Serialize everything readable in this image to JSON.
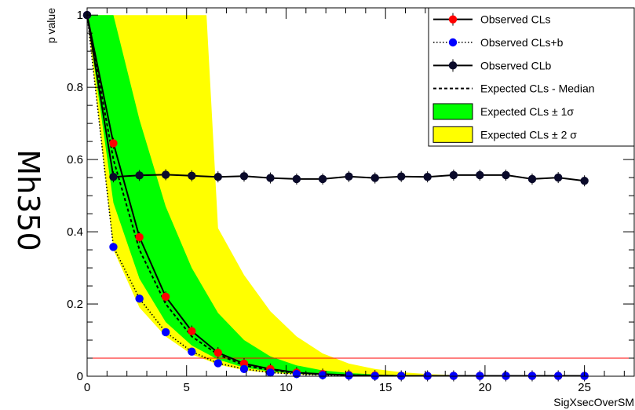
{
  "side_label": "Mh350",
  "chart_data": {
    "type": "line",
    "xlabel": "SigXsecOverSM",
    "ylabel": "p value",
    "xlim": [
      0,
      27.5
    ],
    "ylim": [
      0,
      1.02
    ],
    "x_ticks": [
      0,
      5,
      10,
      15,
      20,
      25
    ],
    "y_ticks": [
      0,
      0.2,
      0.4,
      0.6,
      0.8,
      1
    ],
    "threshold_line": {
      "y": 0.05,
      "color": "#ff0000"
    },
    "legend_position": "top-right",
    "series": [
      {
        "name": "Observed CLs",
        "style": "line-markers",
        "color": "#000000",
        "marker_color": "#ff0000",
        "x": [
          0,
          1.32,
          2.63,
          3.95,
          5.26,
          6.58,
          7.89,
          9.21,
          10.53,
          11.84,
          13.16,
          14.47,
          15.79,
          17.11,
          18.42,
          19.74,
          21.05,
          22.37,
          23.68,
          25.0
        ],
        "y": [
          1.0,
          0.645,
          0.385,
          0.22,
          0.125,
          0.065,
          0.035,
          0.02,
          0.01,
          0.006,
          0.003,
          0.002,
          0.001,
          0.001,
          0.001,
          0.001,
          0.001,
          0.001,
          0.001,
          0.001
        ]
      },
      {
        "name": "Observed CLs+b",
        "style": "dotted-markers",
        "color": "#000000",
        "marker_color": "#0000ff",
        "x": [
          0,
          1.32,
          2.63,
          3.95,
          5.26,
          6.58,
          7.89,
          9.21,
          10.53,
          11.84,
          13.16,
          14.47,
          15.79,
          17.11,
          18.42,
          19.74,
          21.05,
          22.37,
          23.68,
          25.0
        ],
        "y": [
          1.0,
          0.358,
          0.215,
          0.122,
          0.068,
          0.036,
          0.02,
          0.01,
          0.006,
          0.003,
          0.002,
          0.001,
          0.001,
          0.001,
          0.001,
          0.001,
          0.001,
          0.001,
          0.001,
          0.001
        ]
      },
      {
        "name": "Observed CLb",
        "style": "line-markers",
        "color": "#000000",
        "marker_color": "#0a0a2a",
        "x": [
          0,
          1.32,
          2.63,
          3.95,
          5.26,
          6.58,
          7.89,
          9.21,
          10.53,
          11.84,
          13.16,
          14.47,
          15.79,
          17.11,
          18.42,
          19.74,
          21.05,
          22.37,
          23.68,
          25.0
        ],
        "y": [
          1.0,
          0.552,
          0.556,
          0.558,
          0.555,
          0.552,
          0.554,
          0.549,
          0.546,
          0.546,
          0.553,
          0.549,
          0.553,
          0.552,
          0.557,
          0.557,
          0.557,
          0.546,
          0.55,
          0.541
        ]
      },
      {
        "name": "Expected CLs - Median",
        "style": "dashed",
        "color": "#000000",
        "x": [
          0,
          1.32,
          2.63,
          3.95,
          5.26,
          6.58,
          7.89,
          9.21,
          10.53,
          11.84,
          13.16,
          14.47,
          15.79,
          17.11,
          18.42,
          19.74,
          21.05,
          22.37,
          23.68,
          25.0
        ],
        "y": [
          1.0,
          0.6,
          0.35,
          0.2,
          0.11,
          0.06,
          0.03,
          0.017,
          0.009,
          0.005,
          0.003,
          0.002,
          0.001,
          0.001,
          0.001,
          0.001,
          0.001,
          0.001,
          0.001,
          0.001
        ]
      },
      {
        "name": "Expected CLs ± 1σ",
        "style": "band",
        "color": "#00ff00",
        "x": [
          0,
          1.32,
          2.63,
          3.95,
          5.26,
          6.58,
          7.89,
          9.21,
          10.53,
          11.84,
          13.16,
          14.47,
          15.79,
          17.11,
          18.42,
          19.74,
          21.05,
          22.37,
          23.68,
          25.0
        ],
        "low": [
          1.0,
          0.48,
          0.27,
          0.15,
          0.085,
          0.046,
          0.024,
          0.013,
          0.007,
          0.004,
          0.002,
          0.001,
          0.001,
          0.001,
          0.001,
          0.001,
          0.001,
          0.001,
          0.001,
          0.001
        ],
        "high": [
          1.0,
          1.0,
          0.71,
          0.47,
          0.3,
          0.175,
          0.1,
          0.055,
          0.03,
          0.016,
          0.009,
          0.005,
          0.003,
          0.002,
          0.001,
          0.001,
          0.001,
          0.001,
          0.001,
          0.001
        ]
      },
      {
        "name": "Expected CLs ± 2 σ",
        "style": "band",
        "color": "#ffff00",
        "x": [
          0,
          1.32,
          2.63,
          3.95,
          5.26,
          6.0,
          6.58,
          7.89,
          9.21,
          10.53,
          11.84,
          13.16,
          14.47,
          15.79,
          17.11,
          18.42,
          19.74,
          21.05,
          22.37,
          23.68,
          25.0
        ],
        "low": [
          1.0,
          0.35,
          0.19,
          0.11,
          0.06,
          0.045,
          0.032,
          0.017,
          0.009,
          0.005,
          0.003,
          0.002,
          0.001,
          0.001,
          0.001,
          0.001,
          0.001,
          0.001,
          0.001,
          0.001,
          0.001
        ],
        "high": [
          1.0,
          1.0,
          1.0,
          1.0,
          1.0,
          1.0,
          0.41,
          0.28,
          0.18,
          0.11,
          0.063,
          0.035,
          0.02,
          0.011,
          0.006,
          0.003,
          0.002,
          0.001,
          0.001,
          0.001,
          0.001
        ]
      }
    ]
  }
}
